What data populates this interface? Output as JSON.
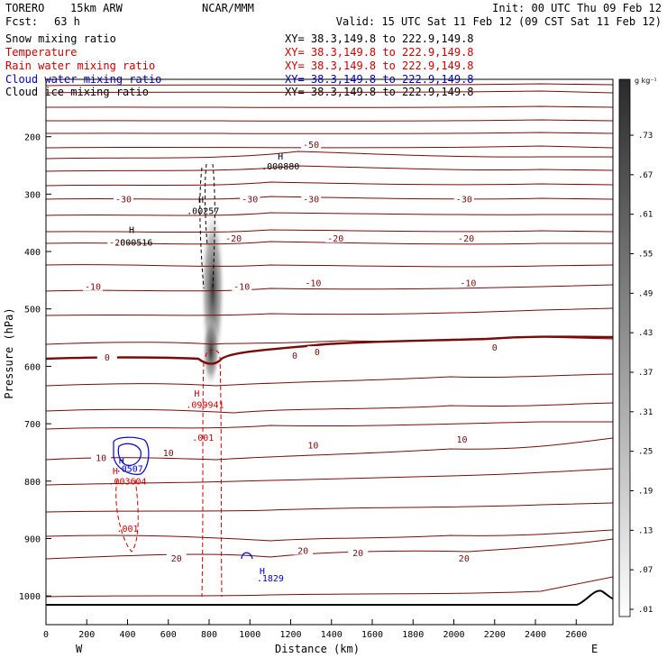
{
  "header": {
    "model": "TORERO",
    "resolution": "15km ARW",
    "center": "NCAR/MMM",
    "init": "Init: 00 UTC Thu 09 Feb 12",
    "fcst_label": "Fcst:",
    "fcst_value": "63 h",
    "valid": "Valid: 15 UTC Sat 11 Feb 12 (09 CST Sat 11 Feb 12)"
  },
  "fields": [
    {
      "label": "Snow mixing ratio",
      "xy": "XY=  38.3,149.8 to 222.9,149.8",
      "color": "#000000"
    },
    {
      "label": "Temperature",
      "xy": "XY=  38.3,149.8 to 222.9,149.8",
      "color": "#cc0000"
    },
    {
      "label": "Rain water mixing ratio",
      "xy": "XY=  38.3,149.8 to 222.9,149.8",
      "color": "#cc0000"
    },
    {
      "label": "Cloud water mixing ratio",
      "xy": "XY=  38.3,149.8 to 222.9,149.8",
      "color": "#0000cc"
    },
    {
      "label": "Cloud ice mixing ratio",
      "xy": "XY=  38.3,149.8 to 222.9,149.8",
      "color": "#000000"
    }
  ],
  "colorbar": {
    "unit": "g kg⁻¹",
    "labels": [
      ".73",
      ".67",
      ".61",
      ".55",
      ".49",
      ".43",
      ".37",
      ".31",
      ".25",
      ".19",
      ".13",
      ".07",
      ".01"
    ]
  },
  "chart_data": {
    "type": "contour-cross-section",
    "xlabel": "Distance (km)",
    "ylabel": "Pressure (hPa)",
    "x_ticks": [
      0,
      200,
      400,
      600,
      800,
      1000,
      1200,
      1400,
      1600,
      1800,
      2000,
      2200,
      2400,
      2600
    ],
    "y_ticks": [
      200,
      300,
      400,
      500,
      600,
      700,
      800,
      900,
      1000
    ],
    "xlim": [
      0,
      2780
    ],
    "ylim": [
      1050,
      100
    ],
    "left_end": "W",
    "right_end": "E",
    "temperature_labels": [
      {
        "text": "-50",
        "x": 1300,
        "p": 215
      },
      {
        "text": "-30",
        "x": 380,
        "p": 310
      },
      {
        "text": "-30",
        "x": 1000,
        "p": 310
      },
      {
        "text": "-30",
        "x": 1300,
        "p": 310
      },
      {
        "text": "-30",
        "x": 2050,
        "p": 310
      },
      {
        "text": "-20",
        "x": 350,
        "p": 385
      },
      {
        "text": "-20",
        "x": 920,
        "p": 378
      },
      {
        "text": "-20",
        "x": 1420,
        "p": 378
      },
      {
        "text": "-20",
        "x": 2060,
        "p": 378
      },
      {
        "text": "-10",
        "x": 230,
        "p": 462
      },
      {
        "text": "-10",
        "x": 960,
        "p": 462
      },
      {
        "text": "-10",
        "x": 1310,
        "p": 456
      },
      {
        "text": "-10",
        "x": 2070,
        "p": 456
      },
      {
        "text": "0",
        "x": 300,
        "p": 585
      },
      {
        "text": "0",
        "x": 1220,
        "p": 582
      },
      {
        "text": "0",
        "x": 1330,
        "p": 576
      },
      {
        "text": "0",
        "x": 2200,
        "p": 568
      },
      {
        "text": "10",
        "x": 270,
        "p": 760
      },
      {
        "text": "10",
        "x": 600,
        "p": 752
      },
      {
        "text": "10",
        "x": 1310,
        "p": 738
      },
      {
        "text": "10",
        "x": 2040,
        "p": 728
      },
      {
        "text": "20",
        "x": 640,
        "p": 935
      },
      {
        "text": "20",
        "x": 1260,
        "p": 922
      },
      {
        "text": "20",
        "x": 1530,
        "p": 926
      },
      {
        "text": "20",
        "x": 2050,
        "p": 935
      }
    ],
    "maxima": [
      {
        "text": ".000880",
        "x": 1150,
        "p": 257,
        "color": "#000000"
      },
      {
        "text": ".00257",
        "x": 770,
        "p": 335,
        "color": "#000000"
      },
      {
        "text": ".000516",
        "x": 430,
        "p": 390,
        "color": "#000000"
      },
      {
        "text": ".099941",
        "x": 780,
        "p": 672,
        "color": "#cc0000"
      },
      {
        "text": ".0507",
        "x": 410,
        "p": 784,
        "color": "#0000cc"
      },
      {
        "text": ".003604",
        "x": 400,
        "p": 806,
        "color": "#cc0000"
      },
      {
        "text": ".1829",
        "x": 1100,
        "p": 975,
        "color": "#0000cc"
      }
    ],
    "contour_labels": [
      {
        "text": ".001",
        "x": 770,
        "p": 730,
        "color": "#cc0000"
      },
      {
        "text": ".001",
        "x": 400,
        "p": 888,
        "color": "#cc0000"
      }
    ],
    "h_marks": [
      {
        "x": 1150,
        "p": 240,
        "color": "#000000"
      },
      {
        "x": 760,
        "p": 315,
        "color": "#000000"
      },
      {
        "x": 420,
        "p": 368,
        "color": "#000000"
      },
      {
        "x": 740,
        "p": 653,
        "color": "#cc0000"
      },
      {
        "x": 370,
        "p": 770,
        "color": "#0000cc"
      },
      {
        "x": 340,
        "p": 788,
        "color": "#cc0000"
      },
      {
        "x": 1060,
        "p": 962,
        "color": "#0000cc"
      }
    ]
  }
}
